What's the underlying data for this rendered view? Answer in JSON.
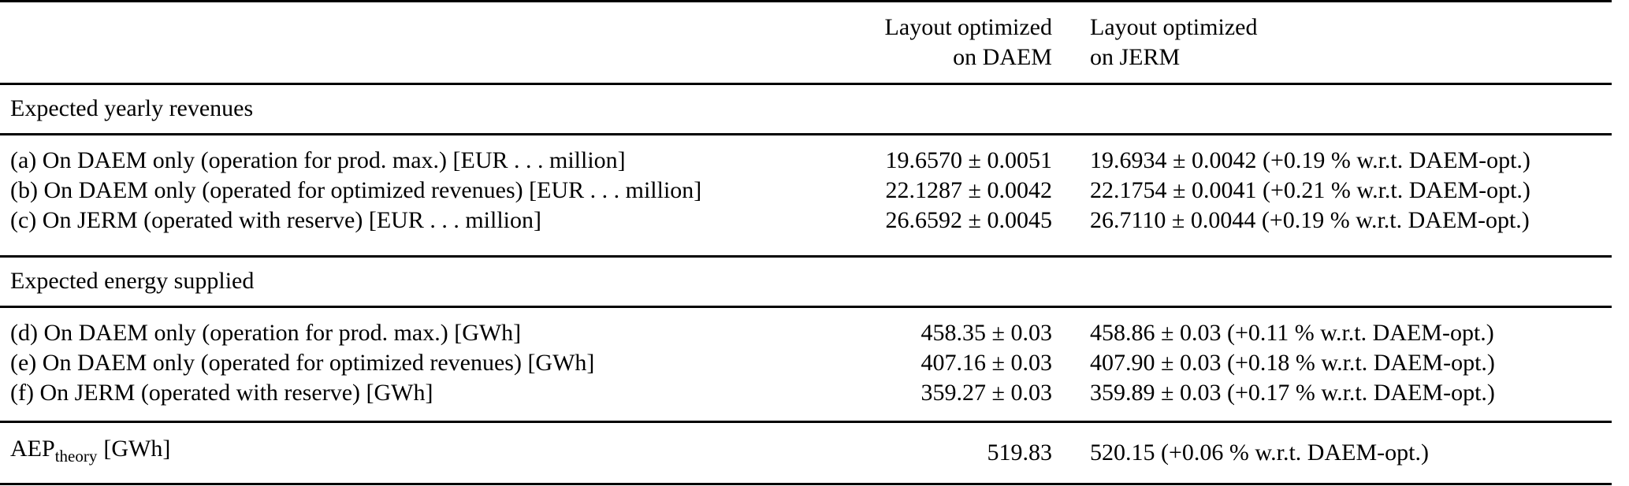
{
  "table": {
    "header": {
      "daem": {
        "line1": "Layout optimized",
        "line2": "on DAEM"
      },
      "jerm": {
        "line1": "Layout optimized",
        "line2": "on JERM"
      }
    },
    "sections": [
      {
        "title": "Expected yearly revenues",
        "rows": [
          {
            "label": "(a) On DAEM only (operation for prod. max.) [EUR . . . million]",
            "daem": "19.6570 ± 0.0051",
            "jerm": "19.6934 ± 0.0042 (+0.19 % w.r.t. DAEM-opt.)"
          },
          {
            "label": "(b) On DAEM only (operated for optimized revenues) [EUR . . . million]",
            "daem": "22.1287 ± 0.0042",
            "jerm": "22.1754 ± 0.0041 (+0.21 % w.r.t. DAEM-opt.)"
          },
          {
            "label": "(c) On JERM (operated with reserve) [EUR . . . million]",
            "daem": "26.6592 ± 0.0045",
            "jerm": "26.7110 ± 0.0044 (+0.19 % w.r.t. DAEM-opt.)"
          }
        ]
      },
      {
        "title": "Expected energy supplied",
        "rows": [
          {
            "label": "(d) On DAEM only (operation for prod. max.) [GWh]",
            "daem": "458.35 ± 0.03",
            "jerm": "458.86 ± 0.03 (+0.11 % w.r.t. DAEM-opt.)"
          },
          {
            "label": "(e) On DAEM only (operated for optimized revenues) [GWh]",
            "daem": "407.16 ± 0.03",
            "jerm": "407.90 ± 0.03 (+0.18 % w.r.t. DAEM-opt.)"
          },
          {
            "label": "(f) On JERM (operated with reserve) [GWh]",
            "daem": "359.27 ± 0.03",
            "jerm": "359.89 ± 0.03 (+0.17 % w.r.t. DAEM-opt.)"
          }
        ]
      }
    ],
    "footer": {
      "label_main": "AEP",
      "label_sub": "theory",
      "label_unit": "[GWh]",
      "daem": "519.83",
      "jerm": "520.15 (+0.06 % w.r.t. DAEM-opt.)"
    }
  }
}
